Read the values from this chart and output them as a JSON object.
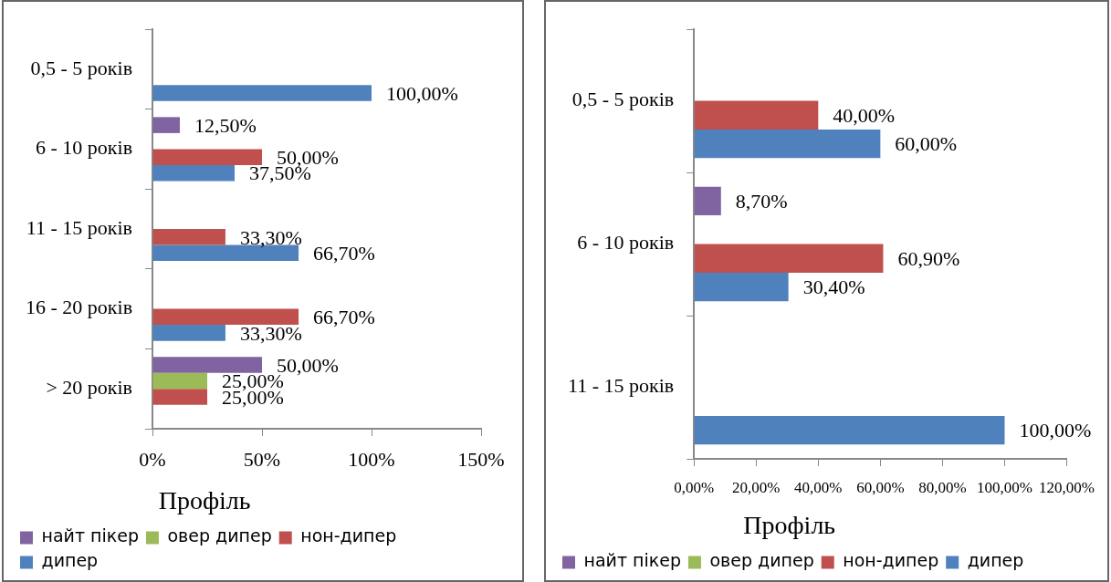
{
  "chart_data": [
    {
      "type": "bar",
      "orientation": "horizontal",
      "legend": "bottom",
      "legend_title": "Профіль",
      "categories": [
        "0,5 - 5 років",
        "6 - 10 років",
        "11 - 15 років",
        "16 - 20 років",
        "> 20 років"
      ],
      "xlim": [
        0,
        150
      ],
      "xticks": [
        {
          "value": 0,
          "label": "0%"
        },
        {
          "value": 50,
          "label": "50%"
        },
        {
          "value": 100,
          "label": "100%"
        },
        {
          "value": 150,
          "label": "150%"
        }
      ],
      "grid": false,
      "series": [
        {
          "name": "найт пікер",
          "color": "#8064a2",
          "values": [
            null,
            12.5,
            null,
            null,
            50
          ],
          "value_labels": [
            null,
            "12,50%",
            null,
            null,
            "50,00%"
          ]
        },
        {
          "name": "овер дипер",
          "color": "#9bbb59",
          "values": [
            null,
            null,
            null,
            null,
            25
          ],
          "value_labels": [
            null,
            null,
            null,
            null,
            "25,00%"
          ]
        },
        {
          "name": "нон-дипер",
          "color": "#c0504d",
          "values": [
            null,
            50,
            33.3,
            66.7,
            25
          ],
          "value_labels": [
            null,
            "50,00%",
            "33,30%",
            "66,70%",
            "25,00%"
          ]
        },
        {
          "name": "дипер",
          "color": "#4f81bd",
          "values": [
            100,
            37.5,
            66.7,
            33.3,
            null
          ],
          "value_labels": [
            "100,00%",
            "37,50%",
            "66,70%",
            "33,30%",
            null
          ]
        }
      ]
    },
    {
      "type": "bar",
      "orientation": "horizontal",
      "legend": "bottom",
      "legend_title": "Профіль",
      "categories": [
        "0,5 - 5 років",
        "6 - 10 років",
        "11 - 15 років"
      ],
      "xlim": [
        0,
        120
      ],
      "xticks": [
        {
          "value": 0,
          "label": "0,00%"
        },
        {
          "value": 20,
          "label": "20,00%"
        },
        {
          "value": 40,
          "label": "40,00%"
        },
        {
          "value": 60,
          "label": "60,00%"
        },
        {
          "value": 80,
          "label": "80,00%"
        },
        {
          "value": 100,
          "label": "100,00%"
        },
        {
          "value": 120,
          "label": "120,00%"
        }
      ],
      "grid": false,
      "series": [
        {
          "name": "найт пікер",
          "color": "#8064a2",
          "values": [
            null,
            8.7,
            null
          ],
          "value_labels": [
            null,
            "8,70%",
            null
          ]
        },
        {
          "name": "овер дипер",
          "color": "#9bbb59",
          "values": [
            null,
            null,
            null
          ],
          "value_labels": [
            null,
            null,
            null
          ]
        },
        {
          "name": "нон-дипер",
          "color": "#c0504d",
          "values": [
            40,
            60.9,
            null
          ],
          "value_labels": [
            "40,00%",
            "60,90%",
            null
          ]
        },
        {
          "name": "дипер",
          "color": "#4f81bd",
          "values": [
            60,
            30.4,
            100
          ],
          "value_labels": [
            "60,00%",
            "30,40%",
            "100,00%"
          ]
        }
      ]
    }
  ]
}
